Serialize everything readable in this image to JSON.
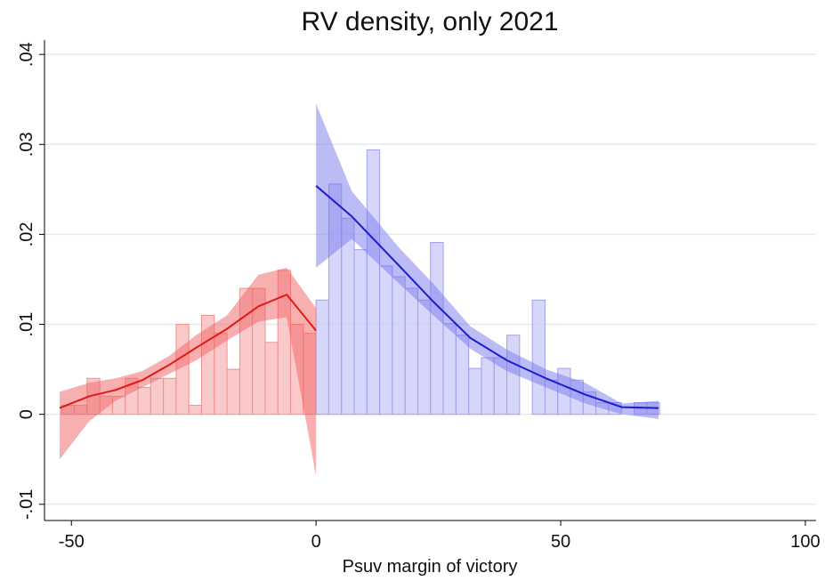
{
  "chart_data": {
    "type": "rd_plot",
    "title": "RV density, only 2021",
    "x_label": "Psuv margin of victory",
    "xlim": [
      -55.5,
      102.2
    ],
    "ylim": [
      -0.0118,
      0.0416
    ],
    "xticks": [
      -50,
      0,
      50,
      100
    ],
    "yticks": [
      {
        "value": -0.01,
        "label": "-.01"
      },
      0,
      {
        "value": 0.01,
        "label": ".01"
      },
      {
        "value": 0.02,
        "label": ".02"
      },
      {
        "value": 0.03,
        "label": ".03"
      },
      {
        "value": 0.04,
        "label": ".04"
      }
    ],
    "grid": true,
    "histograms": [
      {
        "color": "#f8b8b8",
        "edge_color": "#f09090",
        "bins": [
          -52,
          -49.4,
          -46.8,
          -44.2,
          -41.6,
          -39,
          -36.4,
          -33.8,
          -31.2,
          -28.6,
          -26,
          -23.4,
          -20.8,
          -18.2,
          -15.6,
          -13,
          -10.4,
          -7.8,
          -5.2,
          -2.6,
          0
        ],
        "values": [
          0.001,
          0.001,
          0.004,
          0.002,
          0.002,
          0.004,
          0.003,
          0.004,
          0.004,
          0.01,
          0.001,
          0.011,
          0.009,
          0.005,
          0.014,
          0.014,
          0.008,
          0.016,
          0.01,
          0.009
        ]
      },
      {
        "color": "#c8c8f8",
        "edge_color": "#a0a0ee",
        "bins": [
          0,
          2.6,
          5.2,
          7.8,
          10.4,
          13,
          15.6,
          18.2,
          20.8,
          23.4,
          26,
          28.6,
          31.2,
          33.8,
          36.4,
          39,
          41.6,
          44.2,
          46.8,
          49.4,
          52,
          54.6,
          57.2,
          59.8,
          62.4,
          65,
          67.6,
          70.2
        ],
        "values": [
          0.0127,
          0.0256,
          0.0218,
          0.0183,
          0.0294,
          0.0165,
          0.0153,
          0.014,
          0.0127,
          0.0191,
          0.0101,
          0.0088,
          0.0051,
          0.0063,
          0.0063,
          0.0088,
          0.0,
          0.0127,
          0.0038,
          0.0051,
          0.0038,
          0.0025,
          0.0013,
          0.0013,
          0.0,
          0.0013,
          0.0013
        ]
      }
    ],
    "fits": [
      {
        "color": "#e01818",
        "band_color": "#f06060",
        "x": [
          -52.4,
          -46.4,
          -41,
          -35.5,
          -30,
          -24.5,
          -18.2,
          -11.8,
          -6,
          0
        ],
        "values": [
          0.0007,
          0.002,
          0.0027,
          0.0038,
          0.0055,
          0.0074,
          0.0095,
          0.012,
          0.0133,
          0.0093
        ],
        "lower": [
          -0.005,
          -0.0008,
          0.0015,
          0.003,
          0.0045,
          0.006,
          0.0082,
          0.0103,
          0.0108,
          -0.0068
        ],
        "upper": [
          0.0025,
          0.0035,
          0.004,
          0.0048,
          0.0065,
          0.0088,
          0.011,
          0.0155,
          0.0163,
          0.0118
        ]
      },
      {
        "color": "#1c1cd0",
        "band_color": "#7878ee",
        "x": [
          0,
          7.3,
          17,
          24,
          31.5,
          39,
          47,
          55,
          62.5,
          70
        ],
        "values": [
          0.0254,
          0.022,
          0.0165,
          0.0125,
          0.0085,
          0.006,
          0.004,
          0.0022,
          0.0008,
          0.0007
        ],
        "lower": [
          0.0163,
          0.0195,
          0.0145,
          0.011,
          0.0073,
          0.0048,
          0.003,
          0.0012,
          0.0,
          -0.0005
        ],
        "upper": [
          0.0345,
          0.0248,
          0.0185,
          0.0145,
          0.0098,
          0.0072,
          0.005,
          0.0035,
          0.0012,
          0.0015
        ]
      }
    ]
  }
}
